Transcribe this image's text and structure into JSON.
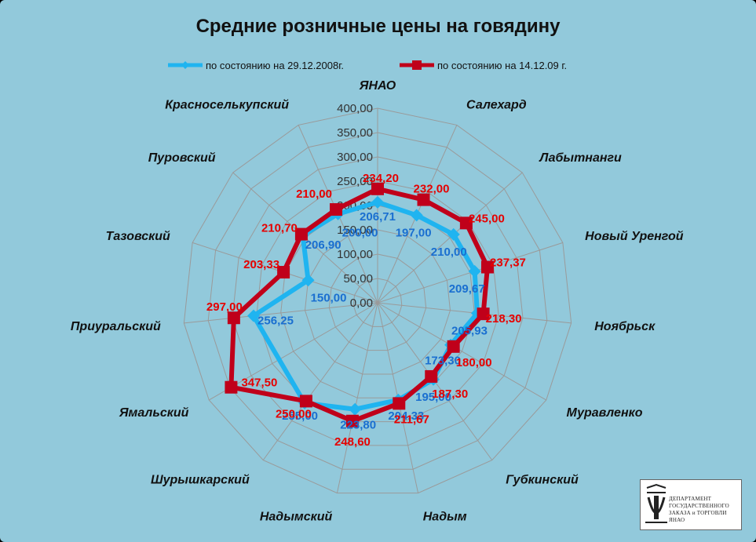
{
  "chart_data": {
    "type": "radar",
    "title": "Средние розничные цены на говядину",
    "categories": [
      "ЯНАО",
      "Салехард",
      "Лабытнанги",
      "Новый Уренгой",
      "Ноябрьск",
      "Муравленко",
      "Губкинский",
      "Надым",
      "Надымский",
      "Шурышкарский",
      "Ямальский",
      "Приуральский",
      "Тазовский",
      "Пуровский",
      "Красноселькупский"
    ],
    "series": [
      {
        "name": "по состоянию на 29.12.2008г.",
        "color": "#1fb4f0",
        "values": [
          206.71,
          197.0,
          210.0,
          209.67,
          205.93,
          173.3,
          195.0,
          204.33,
          223.8,
          255.0,
          null,
          256.25,
          150.0,
          206.9,
          200.0
        ],
        "labels": [
          "206,71",
          "197,00",
          "210,00",
          "209,67",
          "205,93",
          "173,30",
          "195,00",
          "204,33",
          "223,80",
          "255,00",
          "",
          "256,25",
          "150,00",
          "206,90",
          "200,00"
        ]
      },
      {
        "name": "по состоянию на 14.12.09 г.",
        "color": "#c0001a",
        "values": [
          234.2,
          232.0,
          245.0,
          237.37,
          218.3,
          180.0,
          187.3,
          211.67,
          248.6,
          250.0,
          347.5,
          297.0,
          203.33,
          210.7,
          210.0
        ],
        "labels": [
          "234,20",
          "232,00",
          "245,00",
          "237,37",
          "218,30",
          "180,00",
          "187,30",
          "211,67",
          "248,60",
          "250,00",
          "347,50",
          "297,00",
          "203,33",
          "210,70",
          "210,00"
        ]
      }
    ],
    "rmax": 400,
    "ticks": [
      "0,00",
      "50,00",
      "100,00",
      "150,00",
      "200,00",
      "250,00",
      "300,00",
      "350,00",
      "400,00"
    ],
    "grid": true,
    "legend_position": "top"
  },
  "logo": {
    "text": "ДЕПАРТАМЕНТ\nГОСУДАРСТВЕННОГО\nЗАКАЗА и ТОРГОВЛИ ЯНАО"
  }
}
